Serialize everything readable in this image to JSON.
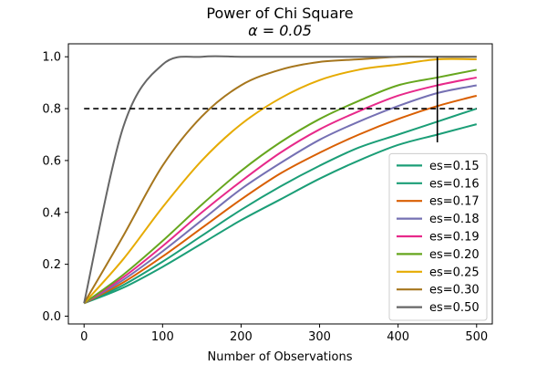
{
  "chart_data": {
    "type": "line",
    "title": "Power of Chi Square",
    "subtitle": "α = 0.05",
    "xlabel": "Number of Observations",
    "ylabel": "",
    "xlim": [
      -20,
      520
    ],
    "ylim": [
      -0.03,
      1.05
    ],
    "xticks": [
      0,
      100,
      200,
      300,
      400,
      500
    ],
    "yticks": [
      0.0,
      0.2,
      0.4,
      0.6,
      0.8,
      1.0
    ],
    "xtick_labels": [
      "0",
      "100",
      "200",
      "300",
      "400",
      "500"
    ],
    "ytick_labels": [
      "0.0",
      "0.2",
      "0.4",
      "0.6",
      "0.8",
      "1.0"
    ],
    "grid": false,
    "legend_position": "lower-right",
    "x": [
      0,
      50,
      100,
      150,
      200,
      250,
      300,
      350,
      400,
      450,
      500
    ],
    "series": [
      {
        "name": "es=0.15",
        "color": "#1b9e77",
        "values": [
          0.05,
          0.11,
          0.19,
          0.28,
          0.37,
          0.45,
          0.53,
          0.6,
          0.66,
          0.7,
          0.74
        ]
      },
      {
        "name": "es=0.16",
        "color": "#1b9e77",
        "values": [
          0.05,
          0.12,
          0.21,
          0.31,
          0.41,
          0.5,
          0.58,
          0.65,
          0.7,
          0.75,
          0.8
        ]
      },
      {
        "name": "es=0.17",
        "color": "#d95f02",
        "values": [
          0.05,
          0.13,
          0.23,
          0.34,
          0.45,
          0.55,
          0.63,
          0.7,
          0.76,
          0.81,
          0.85
        ]
      },
      {
        "name": "es=0.18",
        "color": "#7570b3",
        "values": [
          0.05,
          0.14,
          0.25,
          0.37,
          0.49,
          0.59,
          0.68,
          0.75,
          0.81,
          0.86,
          0.89
        ]
      },
      {
        "name": "es=0.19",
        "color": "#e7298a",
        "values": [
          0.05,
          0.15,
          0.27,
          0.4,
          0.52,
          0.63,
          0.72,
          0.79,
          0.85,
          0.89,
          0.92
        ]
      },
      {
        "name": "es=0.20",
        "color": "#66a61e",
        "values": [
          0.05,
          0.16,
          0.29,
          0.43,
          0.56,
          0.67,
          0.76,
          0.83,
          0.89,
          0.92,
          0.95
        ]
      },
      {
        "name": "es=0.25",
        "color": "#e6ab02",
        "values": [
          0.05,
          0.22,
          0.42,
          0.6,
          0.74,
          0.84,
          0.91,
          0.95,
          0.97,
          0.99,
          0.99
        ]
      },
      {
        "name": "es=0.30",
        "color": "#a6761d",
        "values": [
          0.05,
          0.31,
          0.58,
          0.77,
          0.89,
          0.95,
          0.98,
          0.99,
          1.0,
          1.0,
          1.0
        ]
      },
      {
        "name": "es=0.50",
        "color": "#666666",
        "values": [
          0.05,
          0.73,
          0.97,
          1.0,
          1.0,
          1.0,
          1.0,
          1.0,
          1.0,
          1.0,
          1.0
        ]
      }
    ],
    "reference_lines": [
      {
        "orientation": "horizontal",
        "value": 0.8,
        "style": "dashed",
        "color": "#000000"
      },
      {
        "orientation": "vertical",
        "value": 450,
        "style": "solid",
        "color": "#000000",
        "range": [
          0.67,
          1.0
        ]
      }
    ]
  }
}
